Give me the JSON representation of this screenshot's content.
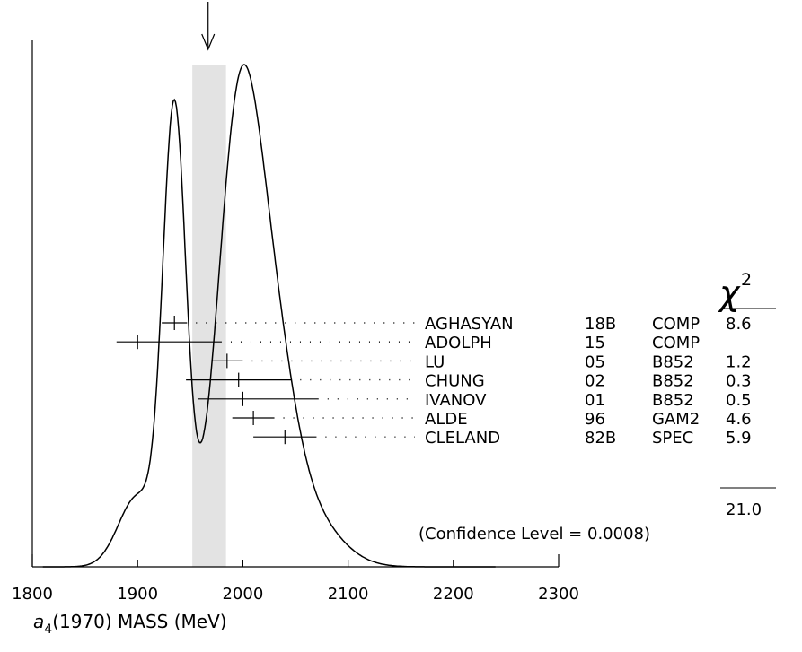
{
  "chart_data": {
    "type": "ideogram",
    "xlabel_base": "a",
    "xlabel_sub": "4",
    "xlabel_rest": "(1970) MASS (MeV)",
    "xlim": [
      1800,
      2300
    ],
    "ticks": [
      1800,
      1900,
      2000,
      2100,
      2200,
      2300
    ],
    "weighted_average": 1967,
    "band": [
      1952,
      1984
    ],
    "chi2_header": "χ",
    "chi2_sup": "2",
    "measurements": [
      {
        "author": "AGHASYAN",
        "year": "18B",
        "tech": "COMP",
        "value": 1935,
        "error": 12,
        "chi2": "8.6"
      },
      {
        "author": "ADOLPH",
        "year": "15",
        "tech": "COMP",
        "value": 1900,
        "error": 20,
        "error_plus": 80,
        "chi2": ""
      },
      {
        "author": "LU",
        "year": "05",
        "tech": "B852",
        "value": 1985,
        "error": 15,
        "chi2": "1.2"
      },
      {
        "author": "CHUNG",
        "year": "02",
        "tech": "B852",
        "value": 1996,
        "error": 50,
        "chi2": "0.3"
      },
      {
        "author": "IVANOV",
        "year": "01",
        "tech": "B852",
        "value": 2000,
        "error": 43,
        "error_plus": 72,
        "chi2": "0.5"
      },
      {
        "author": "ALDE",
        "year": "96",
        "tech": "GAM2",
        "value": 2010,
        "error": 20,
        "chi2": "4.6"
      },
      {
        "author": "CLELAND",
        "year": "82B",
        "tech": "SPEC",
        "value": 2040,
        "error": 30,
        "chi2": "5.9"
      }
    ],
    "chi2_total": "21.0",
    "confidence_text": "(Confidence Level = 0.0008)"
  }
}
